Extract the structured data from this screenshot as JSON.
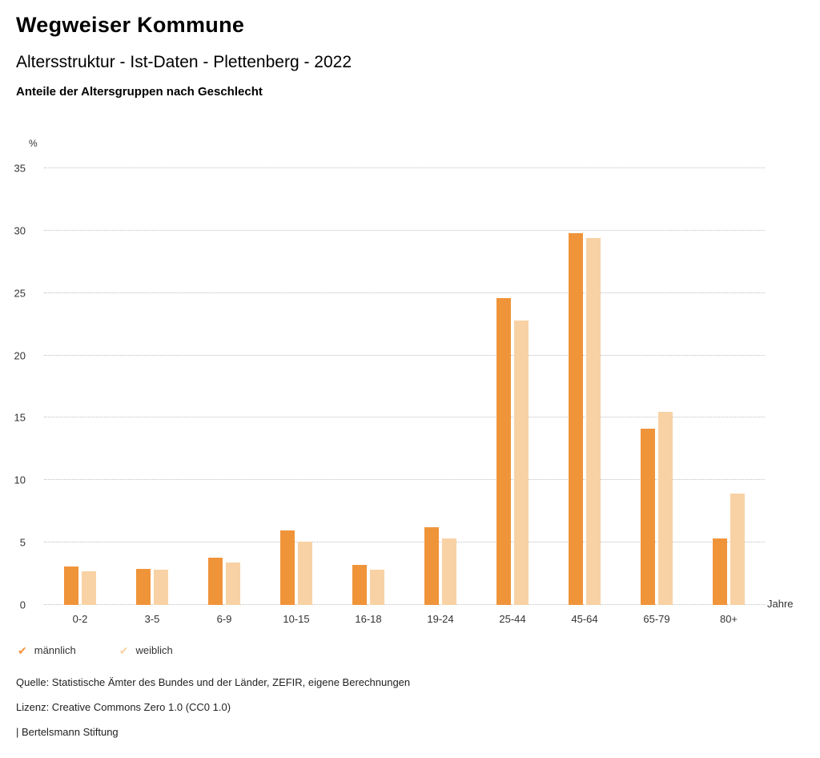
{
  "header": {
    "title": "Wegweiser Kommune",
    "subtitle": "Altersstruktur - Ist-Daten - Plettenberg - 2022",
    "subsubtitle": "Anteile der Altersgruppen nach Geschlecht"
  },
  "chart_data": {
    "type": "bar",
    "title": "Anteile der Altersgruppen nach Geschlecht",
    "categories": [
      "0-2",
      "3-5",
      "6-9",
      "10-15",
      "16-18",
      "19-24",
      "25-44",
      "45-64",
      "65-79",
      "80+"
    ],
    "series": [
      {
        "name": "männlich",
        "color": "#F0943A",
        "values": [
          3.1,
          2.9,
          3.8,
          6.0,
          3.2,
          6.2,
          24.6,
          29.8,
          14.1,
          5.3
        ]
      },
      {
        "name": "weiblich",
        "color": "#F8D2A4",
        "values": [
          2.7,
          2.8,
          3.4,
          5.1,
          2.8,
          5.3,
          22.8,
          29.4,
          15.5,
          8.9
        ]
      }
    ],
    "ylabel": "%",
    "xlabel": "Jahre",
    "ylim": [
      0,
      35
    ],
    "yticks": [
      0,
      5,
      10,
      15,
      20,
      25,
      30,
      35
    ],
    "grid": "dotted horizontal",
    "legend_position": "bottom-left"
  },
  "legend": {
    "items": [
      {
        "label": "männlich",
        "color": "#F0943A",
        "icon": "check-icon"
      },
      {
        "label": "weiblich",
        "color": "#F8D2A4",
        "icon": "check-icon"
      }
    ]
  },
  "footer": {
    "source": "Quelle: Statistische Ämter des Bundes und der Länder, ZEFIR, eigene Berechnungen",
    "license": "Lizenz: Creative Commons Zero 1.0 (CC0 1.0)",
    "attribution": "| Bertelsmann Stiftung"
  }
}
